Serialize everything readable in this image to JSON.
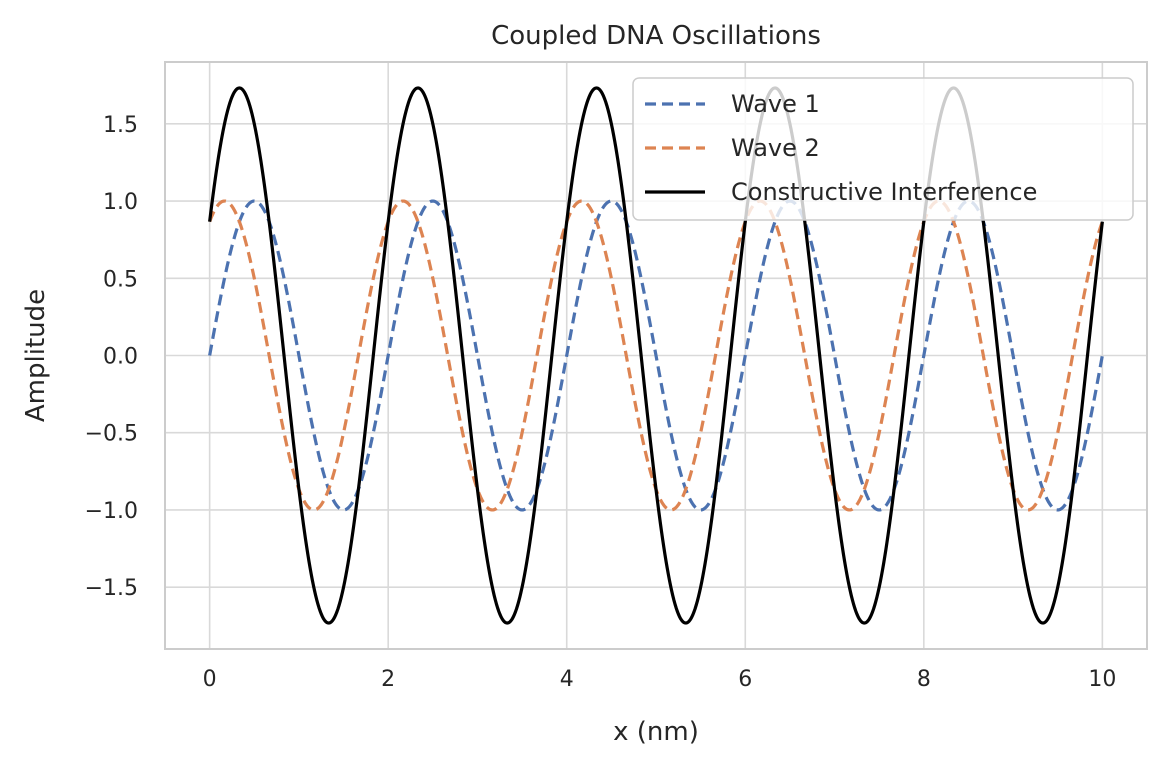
{
  "chart_data": {
    "type": "line",
    "title": "Coupled DNA Oscillations",
    "xlabel": "x (nm)",
    "ylabel": "Amplitude",
    "xlim": [
      -0.5,
      10.5
    ],
    "ylim": [
      -1.9,
      1.9
    ],
    "xticks": [
      0,
      2,
      4,
      6,
      8,
      10
    ],
    "xtick_labels": [
      "0",
      "2",
      "4",
      "6",
      "8",
      "10"
    ],
    "yticks": [
      -1.5,
      -1.0,
      -0.5,
      0.0,
      0.5,
      1.0,
      1.5
    ],
    "ytick_labels": [
      "−1.5",
      "−1.0",
      "−0.5",
      "0.0",
      "0.5",
      "1.0",
      "1.5"
    ],
    "grid": true,
    "legend_position": "top-right",
    "x_range": [
      0,
      10
    ],
    "series": [
      {
        "name": "Wave 1",
        "formula": "sin(pi*x)",
        "amplitude": 1.0,
        "period": 2.0,
        "phase": 0.0,
        "color": "#4c72b0",
        "style": "dashed"
      },
      {
        "name": "Wave 2",
        "formula": "sin(pi*x + pi/3)",
        "amplitude": 1.0,
        "period": 2.0,
        "phase": 1.0472,
        "color": "#dd8452",
        "style": "dashed"
      },
      {
        "name": "Constructive Interference",
        "formula": "sin(pi*x) + sin(pi*x + pi/3)",
        "amplitude": 1.732,
        "period": 2.0,
        "phase": 0.5236,
        "color": "#000000",
        "style": "solid"
      }
    ]
  }
}
